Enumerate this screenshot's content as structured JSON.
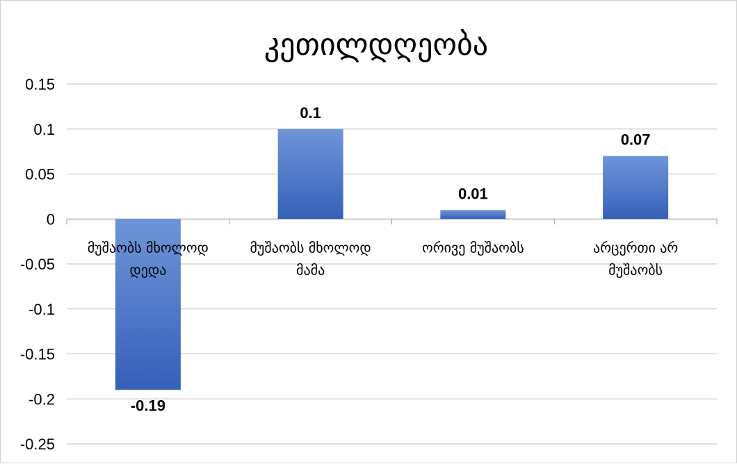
{
  "chart_data": {
    "type": "bar",
    "title": "კეთილდღეობა",
    "categories": [
      [
        "მუშაობს მხოლოდ",
        "დედა"
      ],
      [
        "მუშაობს მხოლოდ",
        "მამა"
      ],
      [
        "ორივე მუშაობს"
      ],
      [
        "არცერთი არ",
        "მუშაობს"
      ]
    ],
    "values": [
      -0.19,
      0.1,
      0.01,
      0.07
    ],
    "data_labels": [
      "-0.19",
      "0.1",
      "0.01",
      "0.07"
    ],
    "yticks": [
      0.15,
      0.1,
      0.05,
      0,
      -0.05,
      -0.1,
      -0.15,
      -0.2,
      -0.25
    ],
    "ytick_labels": [
      "0.15",
      "0.1",
      "0.05",
      "0",
      "-0.05",
      "-0.1",
      "-0.15",
      "-0.2",
      "-0.25"
    ],
    "ylim": [
      -0.25,
      0.15
    ],
    "grid": true,
    "bar_color": "#4472c4"
  }
}
